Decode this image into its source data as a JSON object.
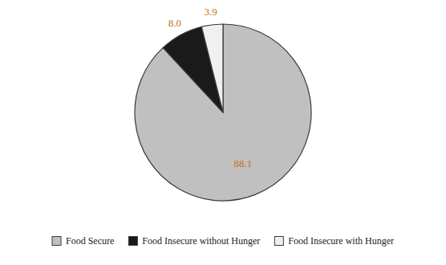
{
  "chart_data": {
    "type": "pie",
    "categories": [
      "Food Secure",
      "Food Insecure without Hunger",
      "Food Insecure with Hunger"
    ],
    "values": [
      88.1,
      8.0,
      3.9
    ],
    "value_labels": [
      "88.1",
      "8.0",
      "3.9"
    ],
    "colors": [
      "#c0c0c0",
      "#1a1a1a",
      "#f0f0f0"
    ],
    "data_labels": true,
    "legend": "bottom"
  }
}
